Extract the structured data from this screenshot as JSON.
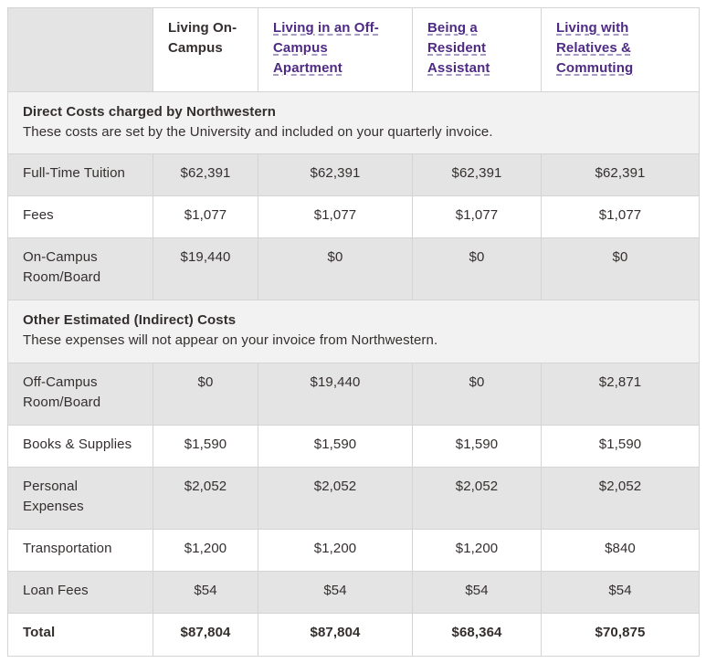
{
  "table": {
    "headers": [
      {
        "label": "",
        "link": false
      },
      {
        "label": "Living On-Campus",
        "link": false
      },
      {
        "label": "Living in an Off-Campus Apartment",
        "link": true
      },
      {
        "label": "Being a Resident Assistant",
        "link": true
      },
      {
        "label": "Living with Relatives & Commuting",
        "link": true
      }
    ],
    "sections": [
      {
        "title": "Direct Costs charged by Northwestern",
        "description": "These costs are set by the University and included on your quarterly invoice.",
        "rows": [
          {
            "label": "Full-Time Tuition",
            "values": [
              "$62,391",
              "$62,391",
              "$62,391",
              "$62,391"
            ]
          },
          {
            "label": "Fees",
            "values": [
              "$1,077",
              "$1,077",
              "$1,077",
              "$1,077"
            ]
          },
          {
            "label": "On-Campus Room/Board",
            "values": [
              "$19,440",
              "$0",
              "$0",
              "$0"
            ]
          }
        ]
      },
      {
        "title": "Other Estimated (Indirect) Costs",
        "description": "These expenses will not appear on your invoice from Northwestern.",
        "rows": [
          {
            "label": "Off-Campus Room/Board",
            "values": [
              "$0",
              "$19,440",
              "$0",
              "$2,871"
            ]
          },
          {
            "label": "Books & Supplies",
            "values": [
              "$1,590",
              "$1,590",
              "$1,590",
              "$1,590"
            ]
          },
          {
            "label": "Personal Expenses",
            "values": [
              "$2,052",
              "$2,052",
              "$2,052",
              "$2,052"
            ]
          },
          {
            "label": "Transportation",
            "values": [
              "$1,200",
              "$1,200",
              "$1,200",
              "$840"
            ]
          },
          {
            "label": "Loan Fees",
            "values": [
              "$54",
              "$54",
              "$54",
              "$54"
            ]
          }
        ]
      }
    ],
    "total": {
      "label": "Total",
      "values": [
        "$87,804",
        "$87,804",
        "$68,364",
        "$70,875"
      ]
    }
  }
}
